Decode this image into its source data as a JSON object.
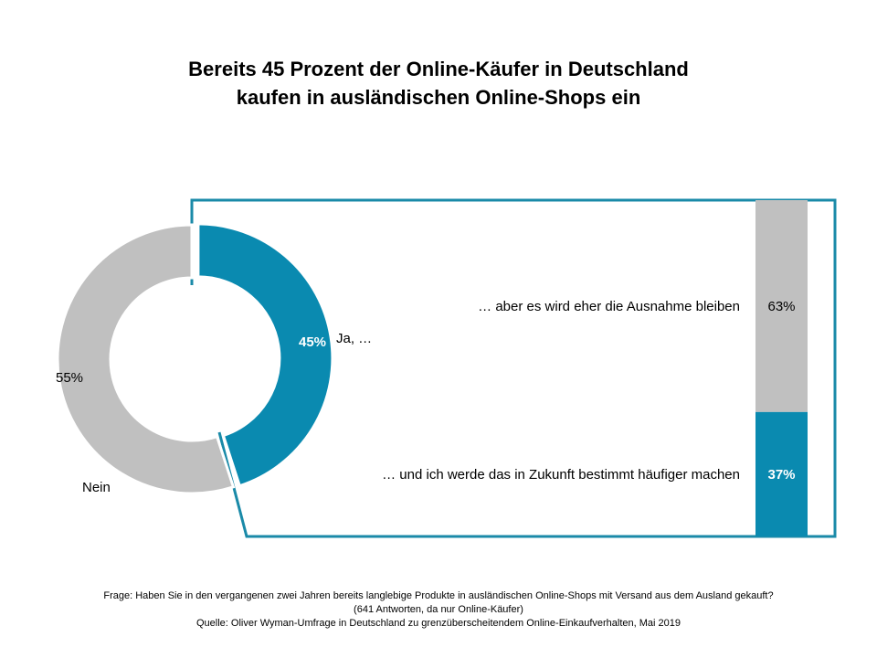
{
  "title": {
    "line1": "Bereits 45 Prozent der Online-Käufer in Deutschland",
    "line2": "kaufen in ausländischen Online-Shops ein"
  },
  "colors": {
    "teal": "#0a8ab0",
    "gray": "#c0c0c0",
    "box_border": "#1a8aa8"
  },
  "chart_data": [
    {
      "type": "pie",
      "variant": "donut",
      "categories": [
        "Ja, …",
        "Nein"
      ],
      "values": [
        45,
        55
      ],
      "value_labels": [
        "45%",
        "55%"
      ],
      "colors": [
        "#0a8ab0",
        "#c0c0c0"
      ],
      "exploded": "Ja, …"
    },
    {
      "type": "bar",
      "variant": "100% stacked",
      "breakdown_of": "Ja, …",
      "categories": [
        "… aber es wird eher die Ausnahme bleiben",
        "… und ich werde das in Zukunft bestimmt häufiger machen"
      ],
      "values": [
        63,
        37
      ],
      "value_labels": [
        "63%",
        "37%"
      ],
      "colors": [
        "#c0c0c0",
        "#0a8ab0"
      ]
    }
  ],
  "footnote": {
    "line1": "Frage: Haben Sie in den vergangenen zwei Jahren bereits langlebige Produkte in ausländischen Online-Shops mit Versand aus dem Ausland gekauft?",
    "line2": "(641 Antworten, da nur Online-Käufer)",
    "line3": "Quelle: Oliver Wyman-Umfrage in Deutschland zu grenzüberscheitendem Online-Einkaufverhalten, Mai 2019"
  }
}
